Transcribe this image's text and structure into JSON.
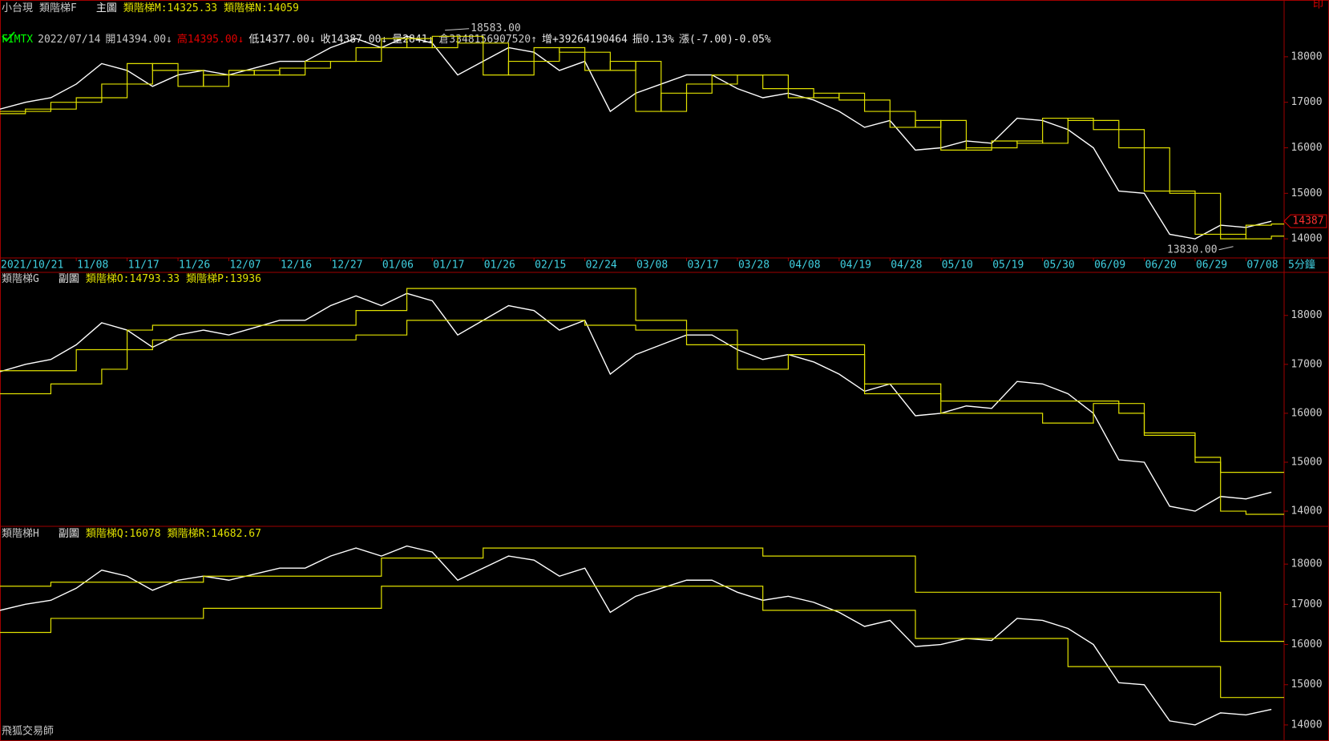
{
  "header": {
    "instrument": "小台現",
    "print_label": "印",
    "app_name": "飛狐交易師",
    "legend_separator": ":",
    "quote": [
      {
        "text": "FIMTX",
        "color": "#00ff00"
      },
      {
        "text": "2022/07/14",
        "color": "#c8c8c8"
      },
      {
        "text": "開14394.00↓",
        "color": "#c8c8c8"
      },
      {
        "text": "高14395.00↓",
        "color": "#e00000"
      },
      {
        "text": "低14377.00↓",
        "color": "#e8e8e8"
      },
      {
        "text": "收14387.00↓",
        "color": "#e8e8e8"
      },
      {
        "text": "量2841↓",
        "color": "#e8e8e8"
      },
      {
        "text": "倉3348156907520↑",
        "color": "#c8c8c8"
      },
      {
        "text": "增+39264190464",
        "color": "#e8e8e8"
      },
      {
        "text": "振0.13%",
        "color": "#e8e8e8"
      },
      {
        "text": "漲(-7.00)-0.05%",
        "color": "#e8e8e8"
      }
    ]
  },
  "chart_data": [
    {
      "type": "line",
      "title": "類階梯F",
      "subtitle": "主圖",
      "period": "5分鐘",
      "x": [
        0,
        2,
        4,
        6,
        8,
        10,
        12,
        14,
        16,
        18,
        20,
        22,
        24,
        26,
        28,
        30,
        32,
        34,
        36,
        38,
        40,
        42,
        44,
        46,
        48,
        50,
        52,
        54,
        56,
        58,
        60,
        62,
        64,
        66,
        68,
        70,
        72,
        74,
        76,
        78,
        80,
        82,
        84,
        86,
        88,
        90,
        92,
        94,
        96,
        98,
        100
      ],
      "xlim": [
        0,
        101
      ],
      "xticks": [
        {
          "value": 0,
          "label": "2021/10/21"
        },
        {
          "value": 6,
          "label": "11/08"
        },
        {
          "value": 10,
          "label": "11/17"
        },
        {
          "value": 14,
          "label": "11/26"
        },
        {
          "value": 18,
          "label": "12/07"
        },
        {
          "value": 22,
          "label": "12/16"
        },
        {
          "value": 26,
          "label": "12/27"
        },
        {
          "value": 30,
          "label": "01/06"
        },
        {
          "value": 34,
          "label": "01/17"
        },
        {
          "value": 38,
          "label": "01/26"
        },
        {
          "value": 42,
          "label": "02/15"
        },
        {
          "value": 46,
          "label": "02/24"
        },
        {
          "value": 50,
          "label": "03/08"
        },
        {
          "value": 54,
          "label": "03/17"
        },
        {
          "value": 58,
          "label": "03/28"
        },
        {
          "value": 62,
          "label": "04/08"
        },
        {
          "value": 66,
          "label": "04/19"
        },
        {
          "value": 70,
          "label": "04/28"
        },
        {
          "value": 74,
          "label": "05/10"
        },
        {
          "value": 78,
          "label": "05/19"
        },
        {
          "value": 82,
          "label": "05/30"
        },
        {
          "value": 86,
          "label": "06/09"
        },
        {
          "value": 90,
          "label": "06/20"
        },
        {
          "value": 94,
          "label": "06/29"
        },
        {
          "value": 98,
          "label": "07/08"
        }
      ],
      "ylim": [
        13580,
        18860
      ],
      "yticks": [
        14000,
        15000,
        16000,
        17000,
        18000
      ],
      "annotations": [
        {
          "text": "18583.00",
          "x": 35,
          "y": 18583
        },
        {
          "text": "13830.00",
          "x": 97,
          "y": 13830
        }
      ],
      "series": [
        {
          "color": "#ffffff",
          "last_marker": true,
          "values": [
            16850,
            17000,
            17100,
            17400,
            17850,
            17700,
            17350,
            17600,
            17700,
            17600,
            17750,
            17900,
            17900,
            18200,
            18400,
            18200,
            18450,
            18300,
            17600,
            17900,
            18200,
            18100,
            17700,
            17900,
            16800,
            17200,
            17400,
            17600,
            17600,
            17300,
            17100,
            17200,
            17050,
            16800,
            16450,
            16600,
            15950,
            16000,
            16150,
            16100,
            16650,
            16600,
            16400,
            16000,
            15050,
            15000,
            14100,
            14000,
            14300,
            14250,
            14387
          ]
        },
        {
          "name": "類階梯M",
          "color": "#e0e000",
          "step": true,
          "values": [
            16800,
            16850,
            17000,
            17100,
            17400,
            17850,
            17700,
            17350,
            17600,
            17700,
            17600,
            17750,
            17900,
            17900,
            18200,
            18400,
            18200,
            18450,
            18300,
            17600,
            17900,
            18200,
            18100,
            17700,
            17900,
            16800,
            17200,
            17400,
            17600,
            17600,
            17300,
            17100,
            17200,
            17050,
            16800,
            16450,
            16600,
            15950,
            16000,
            16150,
            16100,
            16650,
            16600,
            16400,
            16000,
            15050,
            15000,
            14100,
            14000,
            14300,
            14325.33
          ]
        },
        {
          "name": "類階梯N",
          "color": "#e0e000",
          "step": true,
          "values": [
            16750,
            16800,
            16850,
            17000,
            17100,
            17400,
            17850,
            17700,
            17350,
            17600,
            17700,
            17600,
            17750,
            17900,
            17900,
            18200,
            18400,
            18200,
            18450,
            18300,
            17600,
            17900,
            18200,
            18100,
            17700,
            17900,
            16800,
            17200,
            17400,
            17600,
            17600,
            17300,
            17100,
            17200,
            17050,
            16800,
            16450,
            16600,
            15950,
            16000,
            16150,
            16100,
            16650,
            16600,
            16400,
            16000,
            15050,
            15000,
            14100,
            14000,
            14059
          ]
        }
      ]
    },
    {
      "type": "line",
      "title": "類階梯G",
      "subtitle": "副圖",
      "x": [
        0,
        2,
        4,
        6,
        8,
        10,
        12,
        14,
        16,
        18,
        20,
        22,
        24,
        26,
        28,
        30,
        32,
        34,
        36,
        38,
        40,
        42,
        44,
        46,
        48,
        50,
        52,
        54,
        56,
        58,
        60,
        62,
        64,
        66,
        68,
        70,
        72,
        74,
        76,
        78,
        80,
        82,
        84,
        86,
        88,
        90,
        92,
        94,
        96,
        98,
        100
      ],
      "xlim": [
        0,
        101
      ],
      "ylim": [
        13690,
        18880
      ],
      "yticks": [
        14000,
        15000,
        16000,
        17000,
        18000
      ],
      "series": [
        {
          "color": "#ffffff",
          "values": [
            16850,
            17000,
            17100,
            17400,
            17850,
            17700,
            17350,
            17600,
            17700,
            17600,
            17750,
            17900,
            17900,
            18200,
            18400,
            18200,
            18450,
            18300,
            17600,
            17900,
            18200,
            18100,
            17700,
            17900,
            16800,
            17200,
            17400,
            17600,
            17600,
            17300,
            17100,
            17200,
            17050,
            16800,
            16450,
            16600,
            15950,
            16000,
            16150,
            16100,
            16650,
            16600,
            16400,
            16000,
            15050,
            15000,
            14100,
            14000,
            14300,
            14250,
            14387
          ]
        },
        {
          "name": "類階梯O",
          "color": "#e0e000",
          "step": true,
          "values": [
            16870,
            16870,
            16870,
            17300,
            17300,
            17700,
            17800,
            17800,
            17800,
            17800,
            17800,
            17800,
            17800,
            17800,
            18100,
            18100,
            18550,
            18550,
            18550,
            18550,
            18550,
            18550,
            18550,
            18550,
            18550,
            17900,
            17900,
            17400,
            17400,
            17400,
            17400,
            17400,
            17400,
            17400,
            16600,
            16600,
            16600,
            16250,
            16250,
            16250,
            16250,
            16250,
            16250,
            16250,
            16000,
            15550,
            15550,
            15100,
            14793.33,
            14793.33,
            14793.33
          ]
        },
        {
          "name": "類階梯P",
          "color": "#e0e000",
          "step": true,
          "values": [
            16400,
            16400,
            16600,
            16600,
            16900,
            17300,
            17500,
            17500,
            17500,
            17500,
            17500,
            17500,
            17500,
            17500,
            17600,
            17600,
            17900,
            17900,
            17900,
            17900,
            17900,
            17900,
            17900,
            17800,
            17800,
            17700,
            17700,
            17700,
            17700,
            16900,
            16900,
            17200,
            17200,
            17200,
            16400,
            16400,
            16400,
            16000,
            16000,
            16000,
            16000,
            15800,
            15800,
            16200,
            16200,
            15600,
            15600,
            15000,
            14000,
            13936,
            13936
          ]
        }
      ]
    },
    {
      "type": "line",
      "title": "類階梯H",
      "subtitle": "副圖",
      "x": [
        0,
        2,
        4,
        6,
        8,
        10,
        12,
        14,
        16,
        18,
        20,
        22,
        24,
        26,
        28,
        30,
        32,
        34,
        36,
        38,
        40,
        42,
        44,
        46,
        48,
        50,
        52,
        54,
        56,
        58,
        60,
        62,
        64,
        66,
        68,
        70,
        72,
        74,
        76,
        78,
        80,
        82,
        84,
        86,
        88,
        90,
        92,
        94,
        96,
        98,
        100
      ],
      "xlim": [
        0,
        101
      ],
      "ylim": [
        13660,
        18940
      ],
      "yticks": [
        14000,
        15000,
        16000,
        17000,
        18000
      ],
      "series": [
        {
          "color": "#ffffff",
          "values": [
            16850,
            17000,
            17100,
            17400,
            17850,
            17700,
            17350,
            17600,
            17700,
            17600,
            17750,
            17900,
            17900,
            18200,
            18400,
            18200,
            18450,
            18300,
            17600,
            17900,
            18200,
            18100,
            17700,
            17900,
            16800,
            17200,
            17400,
            17600,
            17600,
            17300,
            17100,
            17200,
            17050,
            16800,
            16450,
            16600,
            15950,
            16000,
            16150,
            16100,
            16650,
            16600,
            16400,
            16000,
            15050,
            15000,
            14100,
            14000,
            14300,
            14250,
            14387
          ]
        },
        {
          "name": "類階梯Q",
          "color": "#e0e000",
          "step": true,
          "values": [
            17450,
            17450,
            17550,
            17550,
            17550,
            17550,
            17550,
            17550,
            17700,
            17700,
            17700,
            17700,
            17700,
            17700,
            17700,
            18150,
            18150,
            18150,
            18150,
            18400,
            18400,
            18400,
            18400,
            18400,
            18400,
            18400,
            18400,
            18400,
            18400,
            18400,
            18200,
            18200,
            18200,
            18200,
            18200,
            18200,
            17300,
            17300,
            17300,
            17300,
            17300,
            17300,
            17300,
            17300,
            17300,
            17300,
            17300,
            17300,
            16078,
            16078,
            16078
          ]
        },
        {
          "name": "類階梯R",
          "color": "#e0e000",
          "step": true,
          "values": [
            16300,
            16300,
            16650,
            16650,
            16650,
            16650,
            16650,
            16650,
            16900,
            16900,
            16900,
            16900,
            16900,
            16900,
            16900,
            17450,
            17450,
            17450,
            17450,
            17450,
            17450,
            17450,
            17450,
            17450,
            17450,
            17450,
            17450,
            17450,
            17450,
            17450,
            16850,
            16850,
            16850,
            16850,
            16850,
            16850,
            16150,
            16150,
            16150,
            16150,
            16150,
            16150,
            15450,
            15450,
            15450,
            15450,
            15450,
            15450,
            14682.67,
            14682.67,
            14682.67
          ]
        }
      ]
    }
  ]
}
